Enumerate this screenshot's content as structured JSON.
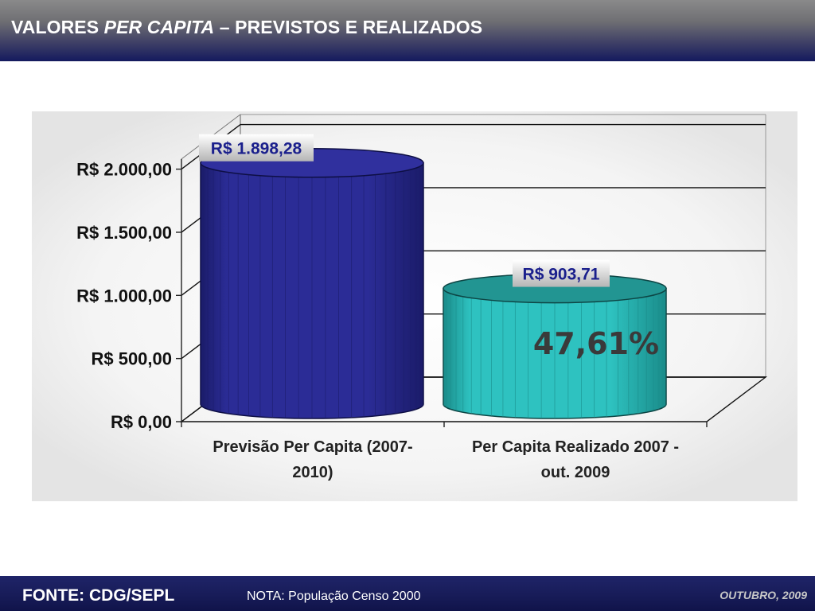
{
  "header": {
    "title_part1": "VALORES ",
    "title_italic": "PER CAPITA",
    "title_part2": " – PREVISTOS E REALIZADOS"
  },
  "footer": {
    "source": "FONTE: CDG/SEPL",
    "note": "NOTA: População Censo 2000",
    "date": "OUTUBRO, 2009"
  },
  "chart_data": {
    "type": "bar",
    "categories": [
      [
        "Previsão Per Capita (2007-",
        "2010)"
      ],
      [
        "Per Capita Realizado 2007 -",
        "out. 2009"
      ]
    ],
    "values": [
      1898.28,
      903.71
    ],
    "data_labels": [
      "R$ 1.898,28",
      "R$ 903,71"
    ],
    "yticks": [
      0,
      500,
      1000,
      1500,
      2000
    ],
    "ytick_labels": [
      "R$ 0,00",
      "R$ 500,00",
      "R$ 1.000,00",
      "R$ 1.500,00",
      "R$ 2.000,00"
    ],
    "ylim": [
      0,
      2000
    ],
    "annotation": "47,61%",
    "grid": true,
    "style": "3d-cylinder",
    "colors": {
      "bar1": "#2b2c96",
      "bar1_dark": "#1b1c6a",
      "bar1_top": "#30309e",
      "bar2": "#2ec2c0",
      "bar2_dark": "#1a8c8a",
      "bar2_top": "#229592",
      "label_text": "#1a1f8c",
      "annotation": "#3a3a3a"
    }
  }
}
